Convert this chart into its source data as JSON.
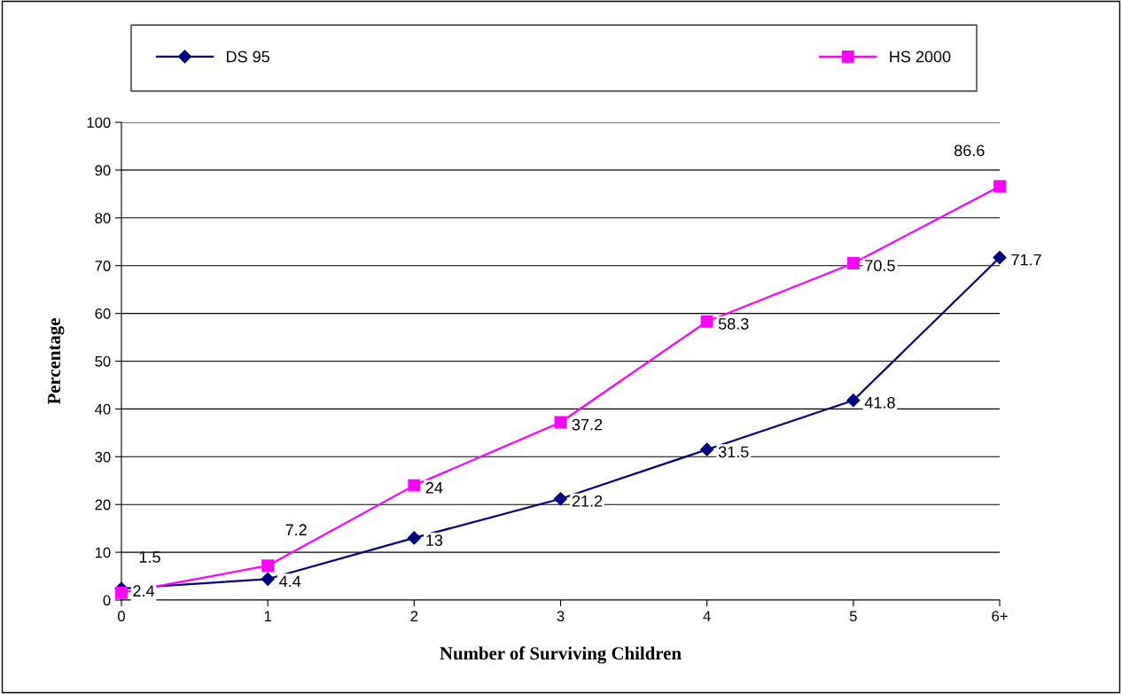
{
  "chart_data": {
    "type": "line",
    "xlabel": "Number of Surviving Children",
    "ylabel": "Percentage",
    "categories": [
      "0",
      "1",
      "2",
      "3",
      "4",
      "5",
      "6+"
    ],
    "series": [
      {
        "name": "DS 95",
        "color": "#000080",
        "marker": "diamond",
        "values": [
          2.4,
          4.4,
          13,
          21.2,
          31.5,
          41.8,
          71.7
        ]
      },
      {
        "name": "HS 2000",
        "color": "#ff00ff",
        "marker": "square",
        "values": [
          1.5,
          7.2,
          24,
          37.2,
          58.3,
          70.5,
          86.6
        ]
      }
    ],
    "ylim": [
      0,
      100
    ],
    "yticks": [
      0,
      10,
      20,
      30,
      40,
      50,
      60,
      70,
      80,
      90,
      100
    ],
    "grid": "y",
    "legend": "top",
    "data_labels": true,
    "line_style": "solid"
  }
}
